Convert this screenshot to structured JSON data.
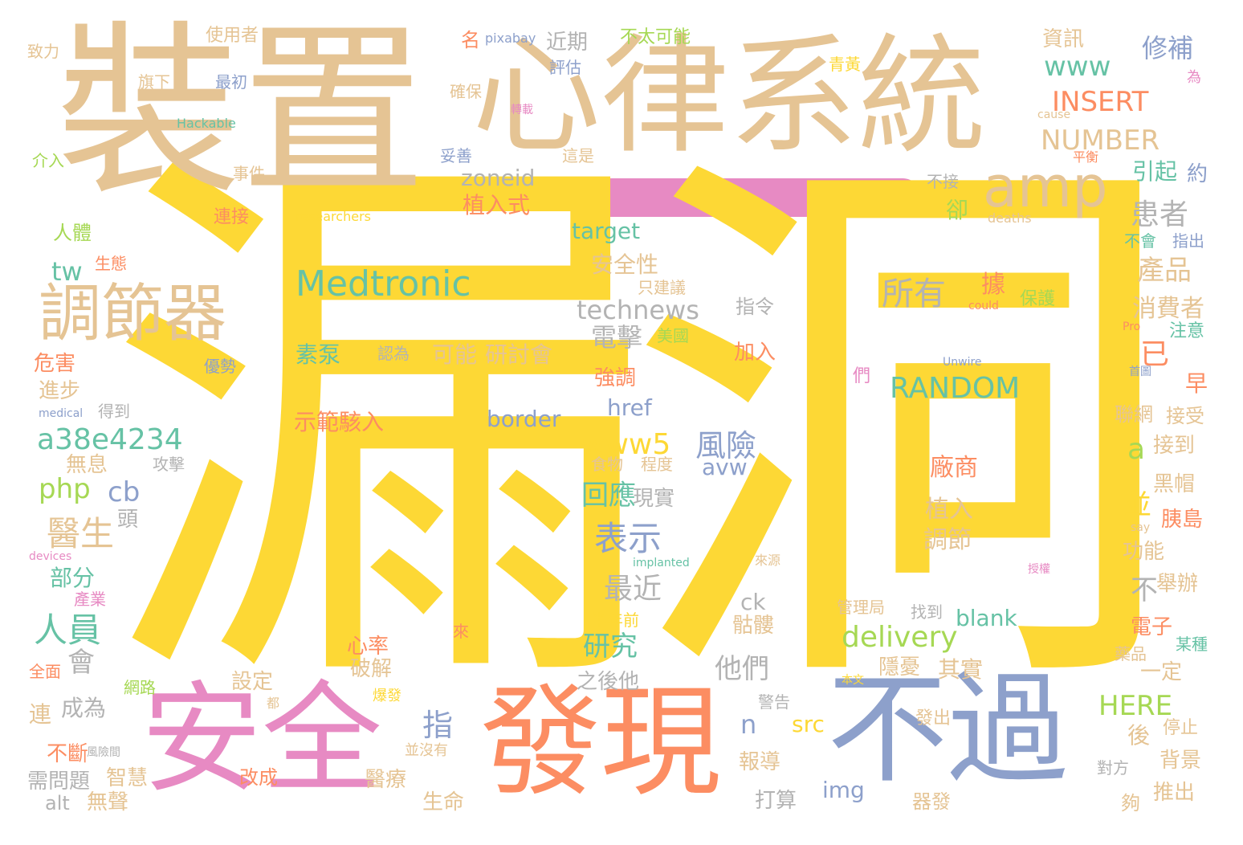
{
  "palette": {
    "yellow": "#fdd835",
    "tan": "#e5c494",
    "pink": "#e78ac3",
    "blue": "#8da0cb",
    "orange": "#fc8d62",
    "green": "#66c2a5",
    "lime": "#a6d854",
    "gray": "#b3b3b3"
  },
  "bar_color": "#e78ac3",
  "words": [
    {
      "text": "漏洞",
      "color": "#fdd835"
    },
    {
      "text": "裝置",
      "color": "#e5c494"
    },
    {
      "text": "心律系統",
      "color": "#e5c494"
    },
    {
      "text": "安全",
      "color": "#e78ac3"
    },
    {
      "text": "發現",
      "color": "#fc8d62"
    },
    {
      "text": "不過",
      "color": "#8da0cb"
    },
    {
      "text": "調節器",
      "color": "#e5c494"
    },
    {
      "text": "amp",
      "color": "#e5c494"
    },
    {
      "text": "Medtronic",
      "color": "#66c2a5"
    },
    {
      "text": "technews",
      "color": "#b3b3b3"
    },
    {
      "text": "RANDOM",
      "color": "#66c2a5"
    },
    {
      "text": "INSERT",
      "color": "#fc8d62"
    },
    {
      "text": "NUMBER",
      "color": "#e5c494"
    },
    {
      "text": "www",
      "color": "#66c2a5"
    },
    {
      "text": "修補",
      "color": "#8da0cb"
    },
    {
      "text": "資訊",
      "color": "#e5c494"
    },
    {
      "text": "近期",
      "color": "#b3b3b3"
    },
    {
      "text": "zoneid",
      "color": "#b3b3b3"
    },
    {
      "text": "患者",
      "color": "#b3b3b3"
    },
    {
      "text": "產品",
      "color": "#e5c494"
    },
    {
      "text": "消費者",
      "color": "#e5c494"
    },
    {
      "text": "所有",
      "color": "#b3b3b3"
    },
    {
      "text": "電擊",
      "color": "#b3b3b3"
    },
    {
      "text": "delivery",
      "color": "#a6d854"
    },
    {
      "text": "a38e4234",
      "color": "#66c2a5"
    },
    {
      "text": "www5",
      "color": "#fdd835"
    },
    {
      "text": "風險",
      "color": "#8da0cb"
    },
    {
      "text": "表示",
      "color": "#8da0cb"
    },
    {
      "text": "回應",
      "color": "#66c2a5"
    },
    {
      "text": "最近",
      "color": "#b3b3b3"
    },
    {
      "text": "研究",
      "color": "#66c2a5"
    },
    {
      "text": "他們",
      "color": "#b3b3b3"
    },
    {
      "text": "醫生",
      "color": "#e5c494"
    },
    {
      "text": "人員",
      "color": "#66c2a5"
    },
    {
      "text": "php",
      "color": "#a6d854"
    },
    {
      "text": "cb",
      "color": "#8da0cb"
    },
    {
      "text": "tw",
      "color": "#66c2a5"
    },
    {
      "text": "HERE",
      "color": "#a6d854"
    },
    {
      "text": "target",
      "color": "#66c2a5"
    },
    {
      "text": "border",
      "color": "#8da0cb"
    },
    {
      "text": "href",
      "color": "#8da0cb"
    },
    {
      "text": "blank",
      "color": "#66c2a5"
    },
    {
      "text": "植入式",
      "color": "#fc8d62"
    },
    {
      "text": "安全性",
      "color": "#e5c494"
    },
    {
      "text": "可能",
      "color": "#e5c494"
    },
    {
      "text": "研討會",
      "color": "#e5c494"
    },
    {
      "text": "素泵",
      "color": "#66c2a5"
    },
    {
      "text": "示範駭入",
      "color": "#fc8d62"
    },
    {
      "text": "引起",
      "color": "#66c2a5"
    },
    {
      "text": "使用者",
      "color": "#e5c494"
    },
    {
      "text": "不太可能",
      "color": "#a6d854"
    },
    {
      "text": "名",
      "color": "#fc8d62"
    },
    {
      "text": "pixabay",
      "color": "#8da0cb"
    },
    {
      "text": "致力",
      "color": "#e5c494"
    },
    {
      "text": "旗下",
      "color": "#e5c494"
    },
    {
      "text": "最初",
      "color": "#8da0cb"
    },
    {
      "text": "評估",
      "color": "#8da0cb"
    },
    {
      "text": "確保",
      "color": "#e5c494"
    },
    {
      "text": "Hackable",
      "color": "#66c2a5"
    },
    {
      "text": "介入",
      "color": "#a6d854"
    },
    {
      "text": "事件",
      "color": "#e5c494"
    },
    {
      "text": "妥善",
      "color": "#8da0cb"
    },
    {
      "text": "這是",
      "color": "#e5c494"
    },
    {
      "text": "青黃",
      "color": "#fdd835"
    },
    {
      "text": "轉載",
      "color": "#e78ac3"
    },
    {
      "text": "人體",
      "color": "#a6d854"
    },
    {
      "text": "連接",
      "color": "#fc8d62"
    },
    {
      "text": "researchers",
      "color": "#fdd835"
    },
    {
      "text": "生態",
      "color": "#fc8d62"
    },
    {
      "text": "危害",
      "color": "#fc8d62"
    },
    {
      "text": "進步",
      "color": "#e5c494"
    },
    {
      "text": "medical",
      "color": "#8da0cb"
    },
    {
      "text": "得到",
      "color": "#b3b3b3"
    },
    {
      "text": "優勢",
      "color": "#8da0cb"
    },
    {
      "text": "認為",
      "color": "#b3b3b3"
    },
    {
      "text": "無息",
      "color": "#e5c494"
    },
    {
      "text": "攻擊",
      "color": "#b3b3b3"
    },
    {
      "text": "頭",
      "color": "#b3b3b3"
    },
    {
      "text": "部分",
      "color": "#66c2a5"
    },
    {
      "text": "產業",
      "color": "#e78ac3"
    },
    {
      "text": "devices",
      "color": "#e78ac3"
    },
    {
      "text": "會",
      "color": "#b3b3b3"
    },
    {
      "text": "全面",
      "color": "#fc8d62"
    },
    {
      "text": "網路",
      "color": "#a6d854"
    },
    {
      "text": "成為",
      "color": "#b3b3b3"
    },
    {
      "text": "連",
      "color": "#e5c494"
    },
    {
      "text": "不斷",
      "color": "#fc8d62"
    },
    {
      "text": "需問題",
      "color": "#b3b3b3"
    },
    {
      "text": "風險間",
      "color": "#b3b3b3"
    },
    {
      "text": "alt",
      "color": "#b3b3b3"
    },
    {
      "text": "無聲",
      "color": "#e5c494"
    },
    {
      "text": "智慧",
      "color": "#e5c494"
    },
    {
      "text": "改成",
      "color": "#fc8d62"
    },
    {
      "text": "設定",
      "color": "#e5c494"
    },
    {
      "text": "都",
      "color": "#e5c494"
    },
    {
      "text": "並沒有",
      "color": "#e5c494"
    },
    {
      "text": "爆發",
      "color": "#fdd835"
    },
    {
      "text": "破解",
      "color": "#e5c494"
    },
    {
      "text": "心率",
      "color": "#fc8d62"
    },
    {
      "text": "醫療",
      "color": "#e5c494"
    },
    {
      "text": "生命",
      "color": "#e5c494"
    },
    {
      "text": "指",
      "color": "#8da0cb"
    },
    {
      "text": "n",
      "color": "#8da0cb"
    },
    {
      "text": "src",
      "color": "#fdd835"
    },
    {
      "text": "img",
      "color": "#8da0cb"
    },
    {
      "text": "報導",
      "color": "#e5c494"
    },
    {
      "text": "打算",
      "color": "#b3b3b3"
    },
    {
      "text": "之後他",
      "color": "#b3b3b3"
    },
    {
      "text": "警告",
      "color": "#b3b3b3"
    },
    {
      "text": "來源",
      "color": "#e5c494"
    },
    {
      "text": "implanted",
      "color": "#66c2a5"
    },
    {
      "text": "現實",
      "color": "#b3b3b3"
    },
    {
      "text": "程度",
      "color": "#e5c494"
    },
    {
      "text": "食物",
      "color": "#e5c494"
    },
    {
      "text": "avw",
      "color": "#8da0cb"
    },
    {
      "text": "美國",
      "color": "#a6d854"
    },
    {
      "text": "只建議",
      "color": "#e5c494"
    },
    {
      "text": "指令",
      "color": "#b3b3b3"
    },
    {
      "text": "加入",
      "color": "#fc8d62"
    },
    {
      "text": "強調",
      "color": "#fc8d62"
    },
    {
      "text": "們",
      "color": "#e78ac3"
    },
    {
      "text": "據",
      "color": "#fc8d62"
    },
    {
      "text": "已",
      "color": "#fc8d62"
    },
    {
      "text": "a",
      "color": "#a6d854"
    },
    {
      "text": "並",
      "color": "#fdd835"
    },
    {
      "text": "不",
      "color": "#b3b3b3"
    },
    {
      "text": "廠商",
      "color": "#fc8d62"
    },
    {
      "text": "植入",
      "color": "#e5c494"
    },
    {
      "text": "調節",
      "color": "#e5c494"
    },
    {
      "text": "ck",
      "color": "#b3b3b3"
    },
    {
      "text": "骷髏",
      "color": "#e5c494"
    },
    {
      "text": "半年前",
      "color": "#fdd835"
    },
    {
      "text": "管理局",
      "color": "#e5c494"
    },
    {
      "text": "找到",
      "color": "#b3b3b3"
    },
    {
      "text": "來",
      "color": "#fc8d62"
    },
    {
      "text": "隱憂",
      "color": "#e5c494"
    },
    {
      "text": "其實",
      "color": "#e5c494"
    },
    {
      "text": "發出",
      "color": "#e5c494"
    },
    {
      "text": "器發",
      "color": "#e5c494"
    },
    {
      "text": "本文",
      "color": "#fdd835"
    },
    {
      "text": "授權",
      "color": "#e78ac3"
    },
    {
      "text": "Unwire",
      "color": "#8da0cb"
    },
    {
      "text": "could",
      "color": "#fc8d62"
    },
    {
      "text": "不接",
      "color": "#b3b3b3"
    },
    {
      "text": "卻",
      "color": "#a6d854"
    },
    {
      "text": "deaths",
      "color": "#e5c494"
    },
    {
      "text": "平衡",
      "color": "#fc8d62"
    },
    {
      "text": "cause",
      "color": "#e5c494"
    },
    {
      "text": "約",
      "color": "#8da0cb"
    },
    {
      "text": "為",
      "color": "#e78ac3"
    },
    {
      "text": "不會",
      "color": "#66c2a5"
    },
    {
      "text": "指出",
      "color": "#8da0cb"
    },
    {
      "text": "保護",
      "color": "#a6d854"
    },
    {
      "text": "注意",
      "color": "#66c2a5"
    },
    {
      "text": "Pro",
      "color": "#fc8d62"
    },
    {
      "text": "首圖",
      "color": "#8da0cb"
    },
    {
      "text": "早",
      "color": "#fc8d62"
    },
    {
      "text": "聯網",
      "color": "#e5c494"
    },
    {
      "text": "接受",
      "color": "#e5c494"
    },
    {
      "text": "接到",
      "color": "#e5c494"
    },
    {
      "text": "黑帽",
      "color": "#e5c494"
    },
    {
      "text": "胰島",
      "color": "#fc8d62"
    },
    {
      "text": "say",
      "color": "#e5c494"
    },
    {
      "text": "功能",
      "color": "#e5c494"
    },
    {
      "text": "舉辦",
      "color": "#e5c494"
    },
    {
      "text": "電子",
      "color": "#fc8d62"
    },
    {
      "text": "某種",
      "color": "#66c2a5"
    },
    {
      "text": "藥品",
      "color": "#e5c494"
    },
    {
      "text": "一定",
      "color": "#e5c494"
    },
    {
      "text": "停止",
      "color": "#e5c494"
    },
    {
      "text": "後",
      "color": "#e5c494"
    },
    {
      "text": "背景",
      "color": "#e5c494"
    },
    {
      "text": "對方",
      "color": "#b3b3b3"
    },
    {
      "text": "推出",
      "color": "#e5c494"
    },
    {
      "text": "夠",
      "color": "#e5c494"
    }
  ]
}
